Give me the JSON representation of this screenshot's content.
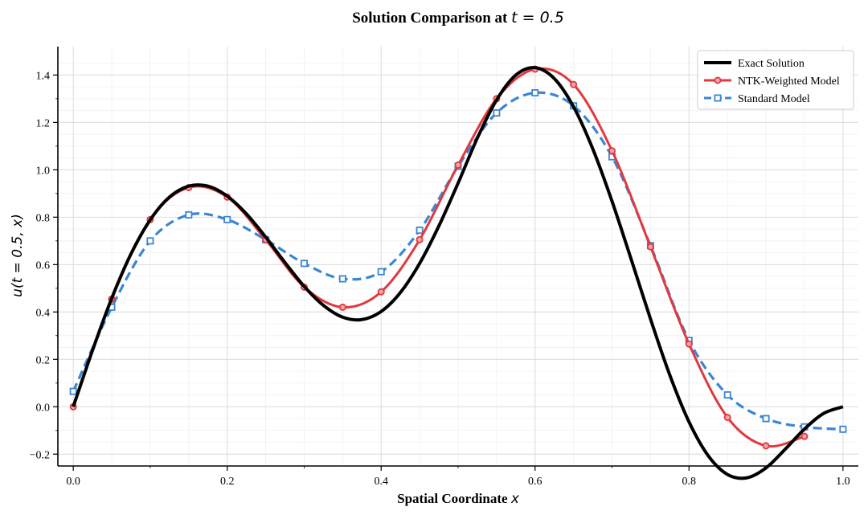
{
  "chart_data": {
    "type": "line",
    "title": "Solution Comparison at ",
    "title_math": "t = 0.5",
    "xlabel": "Spatial Coordinate ",
    "xlabel_math": "x",
    "ylabel": "u(t = 0.5, x)",
    "xlim": [
      -0.02,
      1.02
    ],
    "ylim": [
      -0.25,
      1.52
    ],
    "xticks": [
      0.0,
      0.2,
      0.4,
      0.6,
      0.8,
      1.0
    ],
    "yticks": [
      -0.2,
      0.0,
      0.2,
      0.4,
      0.6,
      0.8,
      1.0,
      1.2,
      1.4
    ],
    "grid": true,
    "legend_position": "top-right",
    "series": [
      {
        "name": "Exact Solution",
        "color": "#000000",
        "style": "solid",
        "x": [
          0.0,
          0.025,
          0.05,
          0.075,
          0.1,
          0.125,
          0.15,
          0.175,
          0.2,
          0.225,
          0.25,
          0.275,
          0.3,
          0.325,
          0.35,
          0.375,
          0.4,
          0.425,
          0.45,
          0.475,
          0.5,
          0.525,
          0.55,
          0.575,
          0.6,
          0.625,
          0.65,
          0.675,
          0.7,
          0.725,
          0.75,
          0.775,
          0.8,
          0.825,
          0.85,
          0.875,
          0.9,
          0.925,
          0.95,
          0.975,
          1.0
        ],
        "y": [
          0.0,
          0.238,
          0.458,
          0.645,
          0.789,
          0.885,
          0.931,
          0.931,
          0.889,
          0.814,
          0.716,
          0.609,
          0.508,
          0.428,
          0.378,
          0.368,
          0.402,
          0.482,
          0.605,
          0.763,
          0.944,
          1.134,
          1.295,
          1.4,
          1.431,
          1.385,
          1.266,
          1.088,
          0.867,
          0.621,
          0.37,
          0.134,
          -0.064,
          -0.207,
          -0.286,
          -0.3,
          -0.258,
          -0.179,
          -0.094,
          -0.028,
          0.0
        ]
      },
      {
        "name": "NTK-Weighted Model",
        "color": "#e0393f",
        "style": "solid",
        "marker": "circle",
        "x": [
          0.0,
          0.05,
          0.1,
          0.15,
          0.2,
          0.25,
          0.3,
          0.35,
          0.4,
          0.45,
          0.5,
          0.55,
          0.6,
          0.65,
          0.7,
          0.75,
          0.8,
          0.85,
          0.9,
          0.95
        ],
        "y": [
          0.0,
          0.455,
          0.79,
          0.925,
          0.885,
          0.705,
          0.505,
          0.42,
          0.485,
          0.705,
          1.02,
          1.3,
          1.425,
          1.36,
          1.08,
          0.675,
          0.265,
          -0.045,
          -0.165,
          -0.125
        ]
      },
      {
        "name": "Standard Model",
        "color": "#3a86d3",
        "style": "dashed",
        "marker": "square",
        "x": [
          0.0,
          0.05,
          0.1,
          0.15,
          0.2,
          0.25,
          0.3,
          0.35,
          0.4,
          0.45,
          0.5,
          0.55,
          0.6,
          0.65,
          0.7,
          0.75,
          0.8,
          0.85,
          0.9,
          0.95,
          1.0
        ],
        "y": [
          0.065,
          0.42,
          0.7,
          0.81,
          0.79,
          0.705,
          0.605,
          0.54,
          0.57,
          0.745,
          1.015,
          1.24,
          1.325,
          1.27,
          1.055,
          0.68,
          0.28,
          0.05,
          -0.05,
          -0.085,
          -0.095
        ]
      }
    ]
  }
}
